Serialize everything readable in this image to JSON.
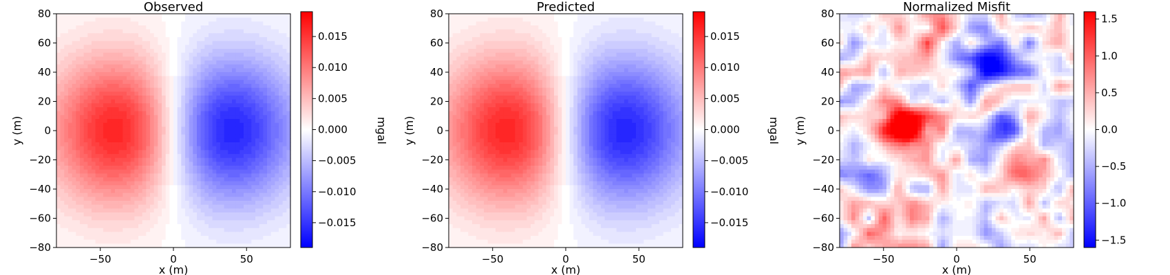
{
  "chart_data": [
    {
      "type": "heatmap",
      "title": "Observed",
      "xlabel": "x (m)",
      "ylabel": "y (m)",
      "xlim": [
        -80,
        80
      ],
      "ylim": [
        -80,
        80
      ],
      "xticks": [
        -50,
        0,
        50
      ],
      "yticks": [
        -80,
        -60,
        -40,
        -20,
        0,
        20,
        40,
        60,
        80
      ],
      "colormap": "bwr",
      "colorbar": {
        "label": "mgal",
        "range": [
          -0.019,
          0.019
        ],
        "ticks": [
          -0.015,
          -0.01,
          -0.005,
          0.0,
          0.005,
          0.01,
          0.015
        ],
        "tick_labels": [
          "−0.015",
          "−0.010",
          "−0.005",
          "0.000",
          "0.005",
          "0.010",
          "0.015"
        ]
      },
      "field": {
        "kind": "dipole",
        "peak": 0.019,
        "positive_center": [
          -32,
          0
        ],
        "negative_center": [
          32,
          0
        ]
      }
    },
    {
      "type": "heatmap",
      "title": "Predicted",
      "xlabel": "x (m)",
      "ylabel": "y (m)",
      "xlim": [
        -80,
        80
      ],
      "ylim": [
        -80,
        80
      ],
      "xticks": [
        -50,
        0,
        50
      ],
      "yticks": [
        -80,
        -60,
        -40,
        -20,
        0,
        20,
        40,
        60,
        80
      ],
      "colormap": "bwr",
      "colorbar": {
        "label": "mgal",
        "range": [
          -0.019,
          0.019
        ],
        "ticks": [
          -0.015,
          -0.01,
          -0.005,
          0.0,
          0.005,
          0.01,
          0.015
        ],
        "tick_labels": [
          "−0.015",
          "−0.010",
          "−0.005",
          "0.000",
          "0.005",
          "0.010",
          "0.015"
        ]
      },
      "field": {
        "kind": "dipole",
        "peak": 0.019,
        "positive_center": [
          -32,
          0
        ],
        "negative_center": [
          32,
          0
        ]
      }
    },
    {
      "type": "heatmap",
      "title": "Normalized Misfit",
      "xlabel": "x (m)",
      "ylabel": "y (m)",
      "xlim": [
        -80,
        80
      ],
      "ylim": [
        -80,
        80
      ],
      "xticks": [
        -50,
        0,
        50
      ],
      "yticks": [
        -80,
        -60,
        -40,
        -20,
        0,
        20,
        40,
        60,
        80
      ],
      "colormap": "bwr",
      "colorbar": {
        "label": "",
        "range": [
          -1.6,
          1.6
        ],
        "ticks": [
          -1.5,
          -1.0,
          -0.5,
          0.0,
          0.5,
          1.0,
          1.5
        ],
        "tick_labels": [
          "−1.5",
          "−1.0",
          "−0.5",
          "0.0",
          "0.5",
          "1.0",
          "1.5"
        ]
      },
      "field": {
        "kind": "noise",
        "range": [
          -1.6,
          1.6
        ],
        "grid": 17
      }
    }
  ]
}
